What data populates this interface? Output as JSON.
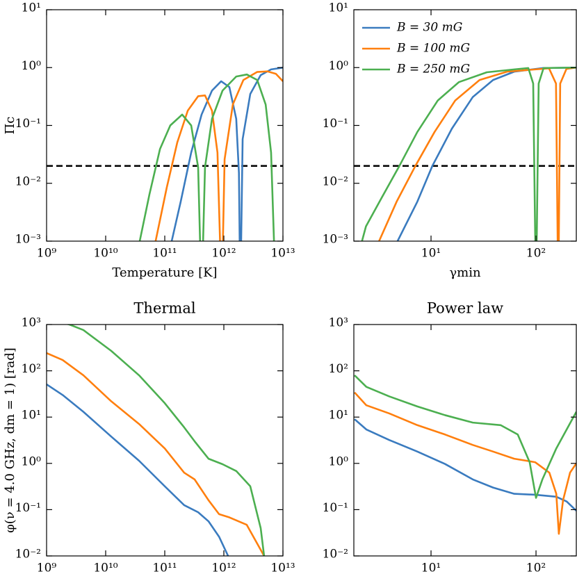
{
  "chart_data": [
    {
      "type": "line",
      "xlabel": "Temperature [K]",
      "ylabel": "Πc",
      "xlog": true,
      "ylog": true,
      "xlim": [
        1000000000.0,
        10000000000000.0
      ],
      "ylim": [
        0.001,
        10
      ],
      "xticks": [
        {
          "value": 1000000000.0,
          "label": "10⁹"
        },
        {
          "value": 10000000000.0,
          "label": "10¹⁰"
        },
        {
          "value": 100000000000.0,
          "label": "10¹¹"
        },
        {
          "value": 1000000000000.0,
          "label": "10¹²"
        },
        {
          "value": 10000000000000.0,
          "label": "10¹³"
        }
      ],
      "yticks": [
        {
          "value": 0.001,
          "label": "10⁻³"
        },
        {
          "value": 0.01,
          "label": "10⁻²"
        },
        {
          "value": 0.1,
          "label": "10⁻¹"
        },
        {
          "value": 1,
          "label": "10⁰"
        },
        {
          "value": 10,
          "label": "10¹"
        }
      ],
      "hline": 0.02,
      "series": [
        {
          "color": "#3a7bbf",
          "x": [
            131000000000.0,
            186000000000.0,
            280000000000.0,
            420000000000.0,
            630000000000.0,
            900000000000.0,
            1240000000000.0,
            1620000000000.0,
            1800000000000.0,
            1900000000000.0,
            2080000000000.0,
            2800000000000.0,
            4200000000000.0,
            6300000000000.0,
            10000000000000.0
          ],
          "values": [
            0.001,
            0.0048,
            0.034,
            0.154,
            0.4,
            0.58,
            0.46,
            0.13,
            0.015,
            0.0001,
            0.058,
            0.35,
            0.74,
            0.93,
            1.0
          ]
        },
        {
          "color": "#ff7f0e",
          "x": [
            70000000000.0,
            108000000000.0,
            163000000000.0,
            245000000000.0,
            367000000000.0,
            480000000000.0,
            630000000000.0,
            780000000000.0,
            920000000000.0,
            1030000000000.0,
            1420000000000.0,
            2140000000000.0,
            3670000000000.0,
            5500000000000.0,
            7600000000000.0,
            10000000000000.0
          ],
          "values": [
            0.001,
            0.0084,
            0.051,
            0.18,
            0.32,
            0.33,
            0.18,
            0.034,
            0.0001,
            0.026,
            0.23,
            0.61,
            0.84,
            0.86,
            0.78,
            0.58
          ]
        },
        {
          "color": "#4caf50",
          "x": [
            37700000000.0,
            55000000000.0,
            83000000000.0,
            124000000000.0,
            197000000000.0,
            280000000000.0,
            367000000000.0,
            420000000000.0,
            480000000000.0,
            630000000000.0,
            950000000000.0,
            1620000000000.0,
            2450000000000.0,
            3670000000000.0,
            5100000000000.0,
            6300000000000.0,
            7600000000000.0
          ],
          "values": [
            0.001,
            0.0064,
            0.039,
            0.1,
            0.154,
            0.1,
            0.019,
            0.0001,
            0.019,
            0.13,
            0.4,
            0.7,
            0.76,
            0.61,
            0.23,
            0.034,
            0.0001
          ]
        }
      ]
    },
    {
      "type": "line",
      "xlabel": "γmin",
      "xlog": true,
      "ylog": true,
      "xlim": [
        1.84,
        242
      ],
      "ylim": [
        0.001,
        10
      ],
      "xticks": [
        {
          "value": 10,
          "label": "10¹"
        },
        {
          "value": 100,
          "label": "10²"
        }
      ],
      "yticks": [
        {
          "value": 0.001,
          "label": "10⁻³"
        },
        {
          "value": 0.01,
          "label": "10⁻²"
        },
        {
          "value": 0.1,
          "label": "10⁻¹"
        },
        {
          "value": 1,
          "label": "10⁰"
        },
        {
          "value": 10,
          "label": "10¹"
        }
      ],
      "hline": 0.02,
      "legend": "upper left",
      "series": [
        {
          "name": "B = 30 mG",
          "color": "#3a7bbf",
          "x": [
            4.8,
            7.4,
            10.3,
            15.8,
            25,
            39,
            62,
            115,
            242
          ],
          "values": [
            0.001,
            0.0048,
            0.02,
            0.088,
            0.31,
            0.61,
            0.85,
            0.98,
            1.0
          ]
        },
        {
          "name": "B = 100 mG",
          "color": "#ff7f0e",
          "x": [
            3.2,
            4.7,
            7.1,
            10.8,
            17,
            29,
            53,
            98,
            133,
            155,
            163,
            170,
            195,
            242
          ],
          "values": [
            0.001,
            0.0048,
            0.02,
            0.077,
            0.27,
            0.61,
            0.85,
            0.93,
            0.97,
            0.53,
            0.0001,
            0.53,
            0.95,
            1.0
          ]
        },
        {
          "name": "B = 250 mG",
          "color": "#4caf50",
          "x": [
            2.2,
            2.4,
            3.4,
            5.0,
            7.4,
            11.6,
            18.4,
            34,
            62,
            84.5,
            94,
            100,
            106,
            118,
            242
          ],
          "values": [
            0.001,
            0.0018,
            0.0057,
            0.02,
            0.077,
            0.27,
            0.56,
            0.83,
            0.93,
            0.98,
            0.53,
            0.0001,
            0.53,
            0.98,
            1.0
          ]
        }
      ]
    },
    {
      "type": "line",
      "title": "Thermal",
      "ylabel": "φ(ν = 4.0 GHz, dm = 1) [rad]",
      "xlog": true,
      "ylog": true,
      "xlim": [
        1000000000.0,
        10000000000000.0
      ],
      "ylim": [
        0.01,
        1000
      ],
      "xticks": [
        {
          "value": 1000000000.0,
          "label": "10⁹"
        },
        {
          "value": 10000000000.0,
          "label": "10¹⁰"
        },
        {
          "value": 100000000000.0,
          "label": "10¹¹"
        },
        {
          "value": 1000000000000.0,
          "label": "10¹²"
        },
        {
          "value": 10000000000000.0,
          "label": "10¹³"
        }
      ],
      "yticks": [
        {
          "value": 0.01,
          "label": "10⁻²"
        },
        {
          "value": 0.1,
          "label": "10⁻¹"
        },
        {
          "value": 1,
          "label": "10⁰"
        },
        {
          "value": 10,
          "label": "10¹"
        },
        {
          "value": 100,
          "label": "10²"
        },
        {
          "value": 1000,
          "label": "10³"
        }
      ],
      "series": [
        {
          "color": "#3a7bbf",
          "x": [
            1000000000.0,
            1870000000.0,
            4200000000.0,
            12400000000.0,
            36700000000.0,
            100000000000.0,
            213000000000.0,
            367000000000.0,
            550000000000.0,
            830000000000.0,
            1180000000000.0
          ],
          "values": [
            51,
            30,
            13,
            3.8,
            1.14,
            0.32,
            0.125,
            0.088,
            0.056,
            0.026,
            0.01
          ]
        },
        {
          "color": "#ff7f0e",
          "x": [
            1000000000.0,
            1870000000.0,
            4200000000.0,
            12400000000.0,
            36700000000.0,
            100000000000.0,
            213000000000.0,
            320000000000.0,
            550000000000.0,
            830000000000.0,
            1240000000000.0,
            2440000000000.0,
            4800000000000.0
          ],
          "values": [
            242,
            171,
            80,
            22,
            7.1,
            2.1,
            0.63,
            0.45,
            0.16,
            0.08,
            0.068,
            0.047,
            0.01
          ]
        },
        {
          "color": "#4caf50",
          "x": [
            1420000000.0,
            2440000000.0,
            4200000000.0,
            12400000000.0,
            36700000000.0,
            100000000000.0,
            213000000000.0,
            320000000000.0,
            550000000000.0,
            950000000000.0,
            1630000000000.0,
            2800000000000.0,
            4200000000000.0,
            4800000000000.0
          ],
          "values": [
            1190,
            1000,
            760,
            270,
            80,
            20,
            6.0,
            3.0,
            1.26,
            0.96,
            0.68,
            0.32,
            0.04,
            0.01
          ]
        }
      ]
    },
    {
      "type": "line",
      "title": "Power law",
      "xlog": true,
      "ylog": true,
      "xlim": [
        1.84,
        242
      ],
      "ylim": [
        0.01,
        1000
      ],
      "xticks": [
        {
          "value": 10,
          "label": "10¹"
        },
        {
          "value": 100,
          "label": "10²"
        }
      ],
      "yticks": [
        {
          "value": 0.01,
          "label": "10⁻²"
        },
        {
          "value": 0.1,
          "label": "10⁻¹"
        },
        {
          "value": 1,
          "label": "10⁰"
        },
        {
          "value": 10,
          "label": "10¹"
        },
        {
          "value": 100,
          "label": "10²"
        },
        {
          "value": 1000,
          "label": "10³"
        }
      ],
      "series": [
        {
          "color": "#3a7bbf",
          "x": [
            1.87,
            2.42,
            4.0,
            7.4,
            13.6,
            25,
            39,
            62,
            98,
            156,
            196,
            242
          ],
          "values": [
            9.0,
            5.4,
            3.2,
            1.8,
            0.97,
            0.45,
            0.3,
            0.22,
            0.21,
            0.19,
            0.15,
            0.095
          ]
        },
        {
          "color": "#ff7f0e",
          "x": [
            1.87,
            2.42,
            4.0,
            7.4,
            13.6,
            25,
            39,
            62,
            98,
            134,
            156,
            165,
            181,
            211,
            242
          ],
          "values": [
            34,
            18,
            12,
            6.7,
            4.2,
            2.5,
            1.8,
            1.26,
            1.06,
            0.63,
            0.22,
            0.03,
            0.16,
            0.63,
            1.0
          ]
        },
        {
          "color": "#4caf50",
          "x": [
            1.87,
            2.42,
            4.0,
            7.4,
            13.6,
            25,
            46,
            67,
            87,
            100,
            115,
            156,
            242
          ],
          "values": [
            80,
            45,
            28,
            17,
            11,
            7.6,
            6.7,
            4.2,
            1.06,
            0.18,
            0.45,
            2.1,
            13
          ]
        }
      ]
    }
  ]
}
